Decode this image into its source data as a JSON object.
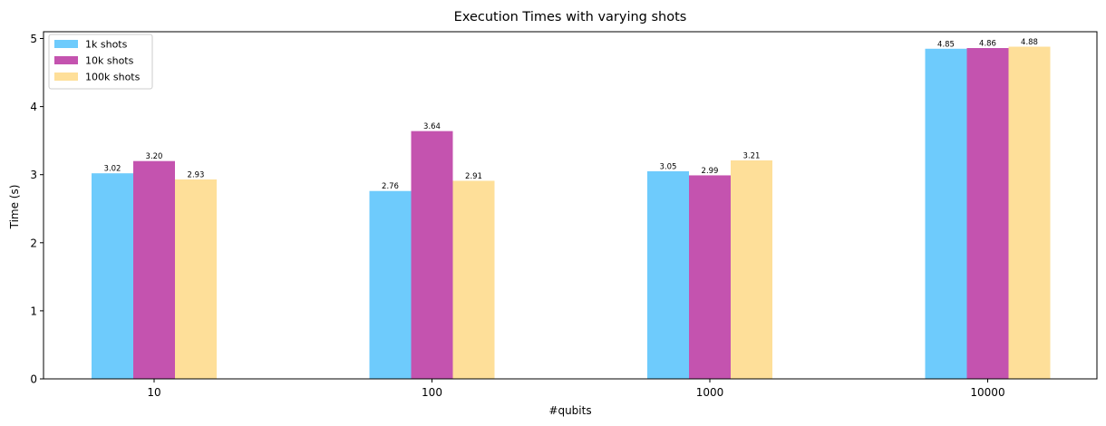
{
  "chart_data": {
    "type": "bar",
    "title": "Execution Times with varying shots",
    "xlabel": "#qubits",
    "ylabel": "Time (s)",
    "categories": [
      "10",
      "100",
      "1000",
      "10000"
    ],
    "series": [
      {
        "name": "1k shots",
        "color": "#6ecbfc",
        "values": [
          3.02,
          2.76,
          3.05,
          4.85
        ],
        "labels": [
          "3.02",
          "2.76",
          "3.05",
          "4.85"
        ]
      },
      {
        "name": "10k shots",
        "color": "#c453af",
        "values": [
          3.2,
          3.64,
          2.99,
          4.86
        ],
        "labels": [
          "3.20",
          "3.64",
          "2.99",
          "4.86"
        ]
      },
      {
        "name": "100k shots",
        "color": "#fedf99",
        "values": [
          2.93,
          2.91,
          3.21,
          4.88
        ],
        "labels": [
          "2.93",
          "2.91",
          "3.21",
          "4.88"
        ]
      }
    ],
    "ylim": [
      0,
      5.1
    ],
    "yticks": [
      "0",
      "1",
      "2",
      "3",
      "4",
      "5"
    ],
    "grid": false,
    "legend_position": "top-left"
  }
}
